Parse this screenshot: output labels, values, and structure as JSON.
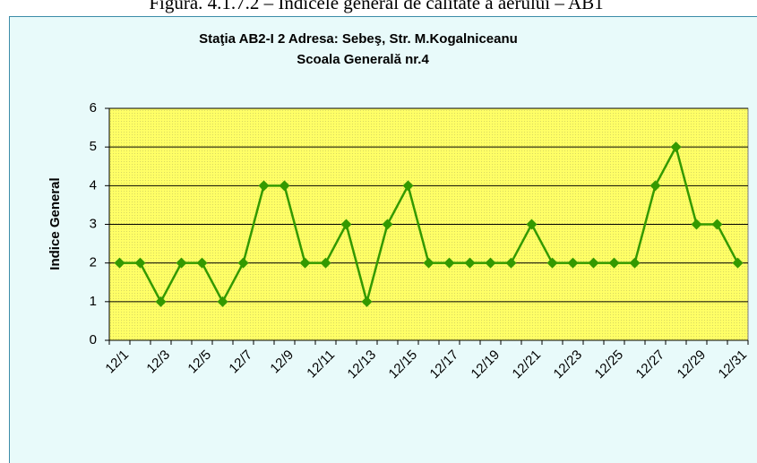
{
  "caption": "Figura. 4.1.7.2 – Indicele general de calitate a aerului – AB1",
  "chart_data": {
    "type": "line",
    "title": [
      "Staţia AB2-I 2  Adresa: Sebeş, Str. M.Kogalniceanu",
      "Scoala Generală nr.4"
    ],
    "y_label": "Indice General",
    "categories": [
      "12/1",
      null,
      "12/3",
      null,
      "12/5",
      null,
      "12/7",
      null,
      "12/9",
      null,
      "12/11",
      null,
      "12/13",
      null,
      "12/15",
      null,
      "12/17",
      null,
      "12/19",
      null,
      "12/21",
      null,
      "12/23",
      null,
      "12/25",
      null,
      "12/27",
      null,
      "12/29",
      null,
      "12/31"
    ],
    "values": [
      2,
      2,
      1,
      2,
      2,
      1,
      2,
      4,
      4,
      2,
      2,
      3,
      1,
      3,
      4,
      2,
      2,
      2,
      2,
      2,
      3,
      2,
      2,
      2,
      2,
      2,
      4,
      5,
      3,
      3,
      2
    ],
    "color": "#339900",
    "ylim": [
      0,
      6
    ],
    "yticks": [
      0,
      1,
      2,
      3,
      4,
      5,
      6
    ],
    "grid": true
  }
}
